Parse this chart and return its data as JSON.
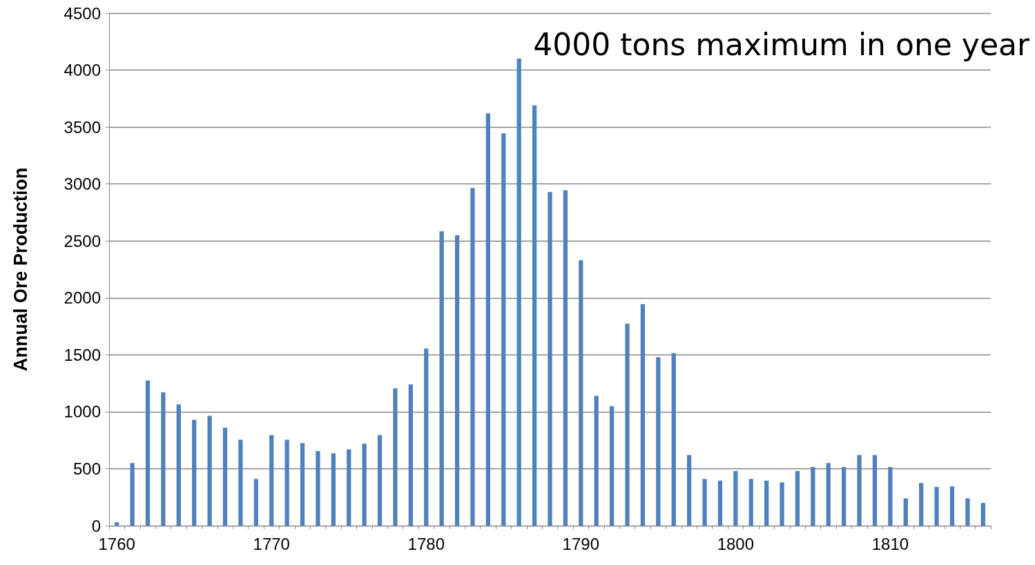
{
  "chart_data": {
    "type": "bar",
    "ylabel": "Annual Ore Production",
    "annotations": [
      "4000 tons maximum in one year"
    ],
    "categories": [
      "1760",
      null,
      null,
      null,
      null,
      null,
      null,
      null,
      null,
      null,
      "1770",
      null,
      null,
      null,
      null,
      null,
      null,
      null,
      null,
      null,
      "1780",
      null,
      null,
      null,
      null,
      null,
      null,
      null,
      null,
      null,
      "1790",
      null,
      null,
      null,
      null,
      null,
      null,
      null,
      null,
      null,
      "1800",
      null,
      null,
      null,
      null,
      null,
      null,
      null,
      null,
      null,
      "1810",
      null,
      null,
      null,
      null,
      null,
      null
    ],
    "values": [
      30,
      550,
      1275,
      1170,
      1065,
      930,
      965,
      860,
      755,
      410,
      795,
      755,
      725,
      655,
      635,
      670,
      720,
      795,
      1205,
      1240,
      1555,
      2585,
      2550,
      2965,
      3620,
      3445,
      4100,
      3690,
      2930,
      2945,
      2330,
      1140,
      1050,
      1775,
      1945,
      1480,
      1515,
      620,
      410,
      395,
      480,
      410,
      395,
      380,
      480,
      515,
      550,
      515,
      620,
      620,
      515,
      240,
      375,
      340,
      345,
      240,
      200
    ],
    "color": "#4f81bd",
    "ylim": [
      0,
      4500
    ],
    "yticks": [
      0,
      500,
      1000,
      1500,
      2000,
      2500,
      3000,
      3500,
      4000,
      4500
    ],
    "grid": "y"
  }
}
